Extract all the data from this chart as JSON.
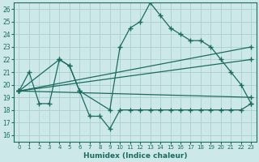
{
  "xlabel": "Humidex (Indice chaleur)",
  "xlim": [
    -0.5,
    23.5
  ],
  "ylim": [
    15.5,
    26.5
  ],
  "xticks": [
    0,
    1,
    2,
    3,
    4,
    5,
    6,
    7,
    8,
    9,
    10,
    11,
    12,
    13,
    14,
    15,
    16,
    17,
    18,
    19,
    20,
    21,
    22,
    23
  ],
  "yticks": [
    16,
    17,
    18,
    19,
    20,
    21,
    22,
    23,
    24,
    25,
    26
  ],
  "bg_color": "#cce8e8",
  "line_color": "#1c6b60",
  "grid_color": "#aacfcf",
  "series": [
    {
      "x": [
        0,
        1,
        2,
        3,
        4,
        5,
        6,
        7,
        8,
        9,
        10,
        11,
        12,
        13,
        14,
        15,
        16,
        17,
        18,
        19,
        20,
        21,
        22,
        23
      ],
      "y": [
        19.5,
        21.0,
        18.5,
        18.5,
        22.0,
        21.5,
        19.5,
        17.5,
        17.5,
        16.5,
        18.0,
        18.0,
        18.0,
        18.0,
        18.0,
        18.0,
        18.0,
        18.0,
        18.0,
        18.0,
        18.0,
        18.0,
        18.0,
        18.5
      ]
    },
    {
      "x": [
        0,
        4,
        5,
        6,
        9,
        10,
        11,
        12,
        13,
        14,
        15,
        16,
        17,
        18,
        19,
        20,
        21,
        22,
        23
      ],
      "y": [
        19.5,
        22.0,
        21.5,
        19.5,
        18.0,
        23.0,
        24.5,
        25.0,
        26.5,
        25.5,
        24.5,
        24.0,
        23.5,
        23.5,
        23.0,
        22.0,
        21.0,
        20.0,
        18.5
      ]
    },
    {
      "x": [
        0,
        23
      ],
      "y": [
        19.5,
        23.0
      ]
    },
    {
      "x": [
        0,
        23
      ],
      "y": [
        19.5,
        22.0
      ]
    },
    {
      "x": [
        0,
        23
      ],
      "y": [
        19.5,
        19.0
      ]
    }
  ]
}
